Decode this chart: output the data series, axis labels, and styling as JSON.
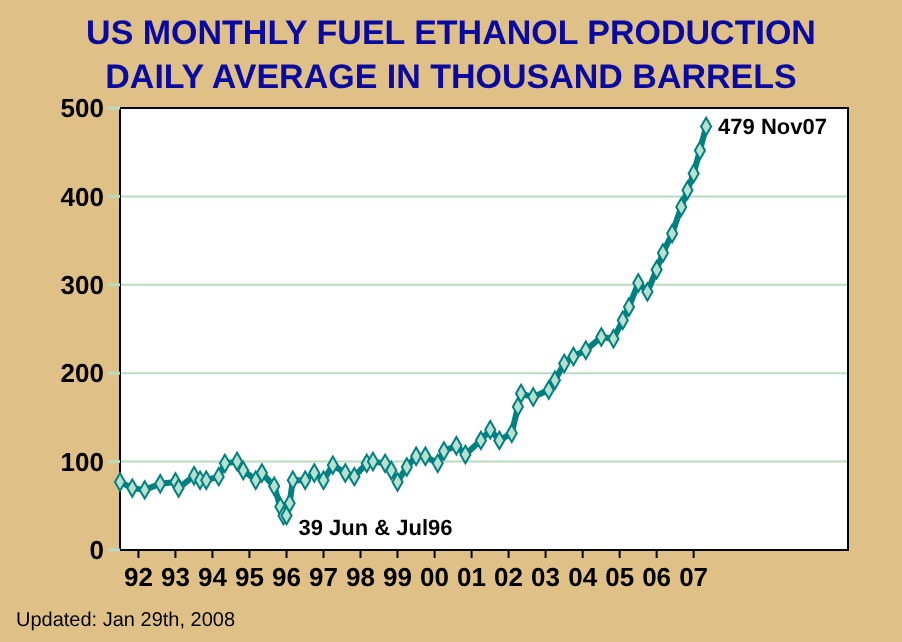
{
  "chart_data": {
    "type": "line",
    "title": "US MONTHLY FUEL ETHANOL PRODUCTION",
    "subtitle": "DAILY AVERAGE IN THOUSAND BARRELS",
    "x": [
      "1992-01",
      "1992-05",
      "1992-09",
      "1993-02",
      "1993-07",
      "1993-08",
      "1994-01",
      "1994-03",
      "1994-05",
      "1994-09",
      "1994-11",
      "1995-03",
      "1995-05",
      "1995-09",
      "1995-11",
      "1996-03",
      "1996-05",
      "1996-06",
      "1996-07",
      "1996-08",
      "1996-09",
      "1997-01",
      "1997-04",
      "1997-07",
      "1997-10",
      "1998-02",
      "1998-05",
      "1998-09",
      "1998-11",
      "1999-03",
      "1999-05",
      "1999-07",
      "1999-10",
      "2000-01",
      "2000-04",
      "2000-08",
      "2000-10",
      "2001-02",
      "2001-05",
      "2001-10",
      "2002-01",
      "2002-04",
      "2002-08",
      "2002-10",
      "2002-11",
      "2003-03",
      "2003-08",
      "2003-10",
      "2004-01",
      "2004-04",
      "2004-08",
      "2005-01",
      "2005-05",
      "2005-08",
      "2005-10",
      "2006-01",
      "2006-04",
      "2006-07",
      "2006-09",
      "2006-12",
      "2007-03",
      "2007-05",
      "2007-07",
      "2007-09",
      "2007-11"
    ],
    "series": [
      {
        "color": "#008080",
        "values": [
          77,
          70,
          68,
          75,
          77,
          70,
          84,
          79,
          79,
          83,
          98,
          100,
          90,
          79,
          87,
          72,
          49,
          39,
          39,
          53,
          79,
          79,
          87,
          79,
          96,
          87,
          83,
          98,
          100,
          98,
          90,
          77,
          94,
          106,
          106,
          98,
          112,
          118,
          108,
          124,
          136,
          124,
          132,
          162,
          177,
          173,
          181,
          192,
          211,
          219,
          226,
          241,
          239,
          260,
          275,
          302,
          292,
          317,
          336,
          358,
          388,
          407,
          426,
          452,
          479
        ]
      }
    ],
    "xlim": [
      "1992-01",
      "2011-09"
    ],
    "xticks": [
      {
        "value": "1992-07",
        "label": "92"
      },
      {
        "value": "1993-07",
        "label": "93"
      },
      {
        "value": "1994-07",
        "label": "94"
      },
      {
        "value": "1995-07",
        "label": "95"
      },
      {
        "value": "1996-07",
        "label": "96"
      },
      {
        "value": "1997-07",
        "label": "97"
      },
      {
        "value": "1998-07",
        "label": "98"
      },
      {
        "value": "1999-07",
        "label": "99"
      },
      {
        "value": "2000-07",
        "label": "00"
      },
      {
        "value": "2001-07",
        "label": "01"
      },
      {
        "value": "2002-07",
        "label": "02"
      },
      {
        "value": "2003-07",
        "label": "03"
      },
      {
        "value": "2004-07",
        "label": "04"
      },
      {
        "value": "2005-07",
        "label": "05"
      },
      {
        "value": "2006-07",
        "label": "06"
      },
      {
        "value": "2007-07",
        "label": "07"
      }
    ],
    "ylim": [
      0,
      500
    ],
    "yticks": [
      0,
      100,
      200,
      300,
      400,
      500
    ],
    "grid": "y",
    "marker": "diamond",
    "annotations": [
      {
        "text": "479 Nov07",
        "x": "2007-11",
        "y": 479
      },
      {
        "text": "39 Jun & Jul96",
        "x": "1996-07",
        "y": 39
      },
      "Updated: Jan 29th, 2008"
    ]
  }
}
